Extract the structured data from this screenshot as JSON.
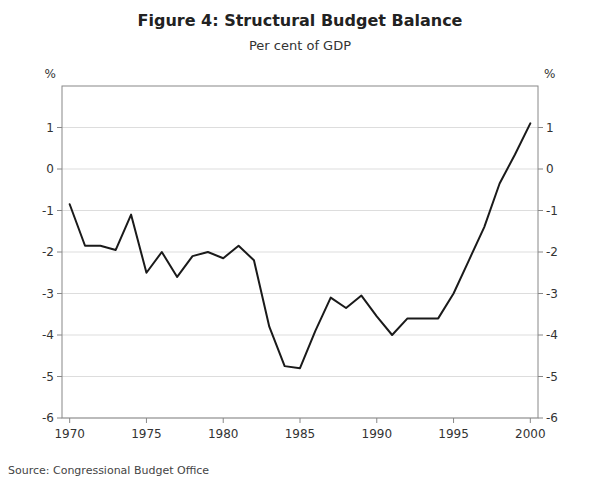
{
  "chart_data": {
    "type": "line",
    "title": "Figure 4: Structural Budget Balance",
    "subtitle": "Per cent of GDP",
    "source": "Source: Congressional Budget Office",
    "ylabel": "%",
    "y2label": "%",
    "x": [
      1970,
      1971,
      1972,
      1973,
      1974,
      1975,
      1976,
      1977,
      1978,
      1979,
      1980,
      1981,
      1982,
      1983,
      1984,
      1985,
      1986,
      1987,
      1988,
      1989,
      1990,
      1991,
      1992,
      1993,
      1994,
      1995,
      1996,
      1997,
      1998,
      1999,
      2000
    ],
    "values": [
      -0.85,
      -1.85,
      -1.85,
      -1.95,
      -1.1,
      -2.5,
      -2.0,
      -2.6,
      -2.1,
      -2.0,
      -2.15,
      -1.85,
      -2.2,
      -3.8,
      -4.75,
      -4.8,
      -3.9,
      -3.1,
      -3.35,
      -3.05,
      -3.55,
      -4.0,
      -3.6,
      -3.6,
      -3.6,
      -3.0,
      -2.2,
      -1.4,
      -0.35,
      0.35,
      1.1
    ],
    "color": "#1a1a1a",
    "xlim": [
      1969.5,
      2000.5
    ],
    "xticks": [
      1970,
      1975,
      1980,
      1985,
      1990,
      1995,
      2000
    ],
    "ylim": [
      -6,
      2
    ],
    "yticks": [
      -6,
      -5,
      -4,
      -3,
      -2,
      -1,
      0,
      1
    ],
    "y2lim": [
      -6,
      2
    ],
    "y2ticks": [
      -6,
      -5,
      -4,
      -3,
      -2,
      -1,
      0,
      1
    ],
    "grid": true
  }
}
